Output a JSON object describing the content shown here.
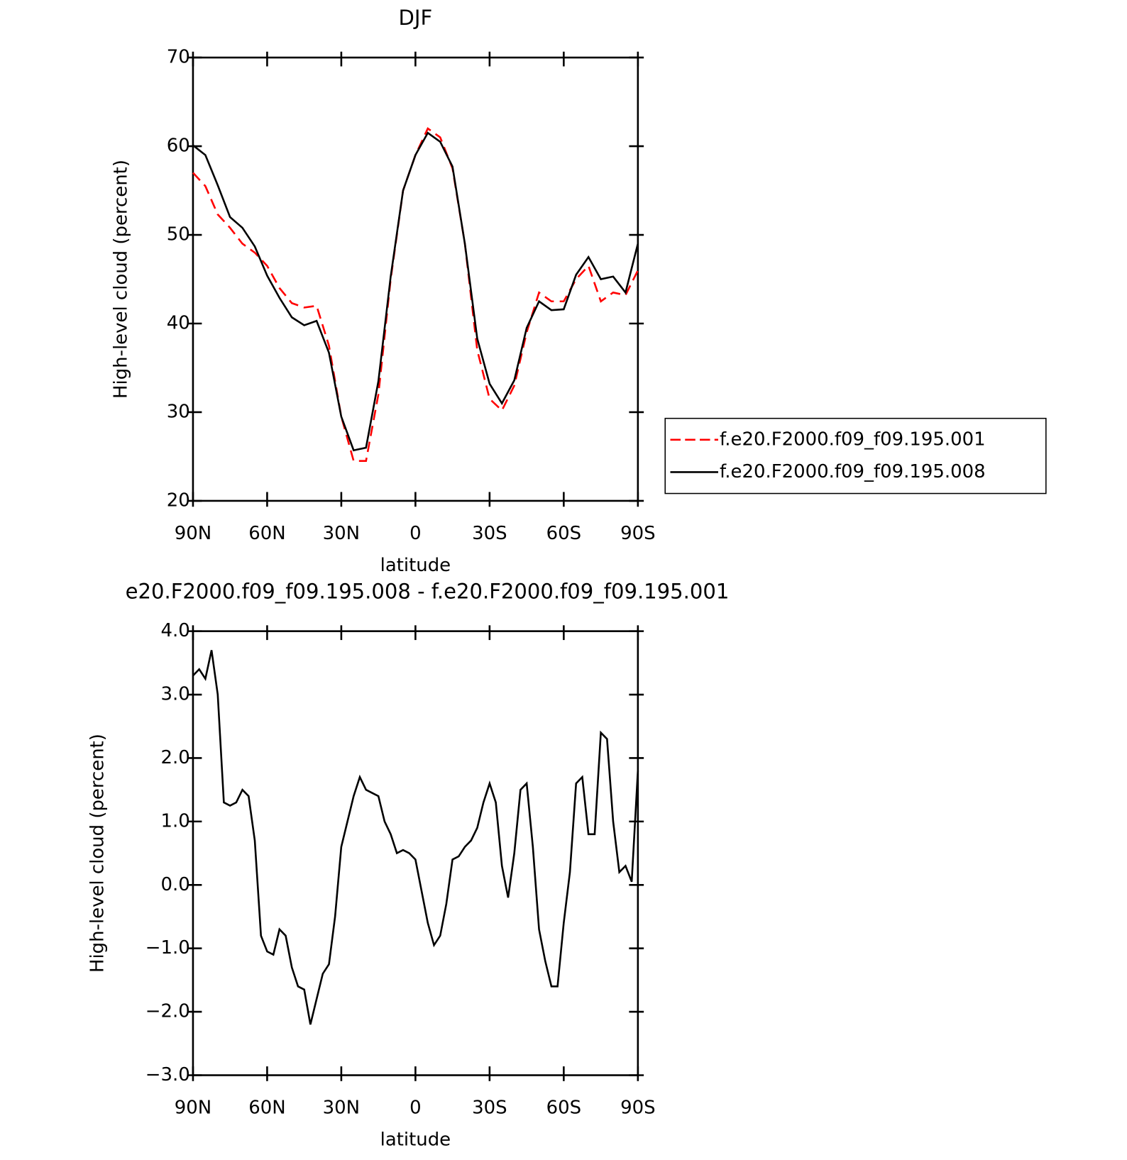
{
  "chart_data": [
    {
      "type": "line",
      "title": "DJF",
      "xlabel": "latitude",
      "ylabel": "High-level cloud (percent)",
      "x": [
        90,
        85,
        80,
        75,
        70,
        65,
        60,
        55,
        50,
        45,
        40,
        35,
        30,
        25,
        20,
        15,
        10,
        5,
        0,
        -5,
        -10,
        -15,
        -20,
        -25,
        -30,
        -35,
        -40,
        -45,
        -50,
        -55,
        -60,
        -65,
        -70,
        -75,
        -80,
        -85,
        -90
      ],
      "series": [
        {
          "name": "f.e20.F2000.f09_f09.195.001",
          "color": "#ff0000",
          "dash": true,
          "values": [
            57,
            55.5,
            52.3,
            50.8,
            49,
            48,
            46.5,
            44,
            42.3,
            41.8,
            42,
            37.5,
            29.5,
            24.5,
            24.5,
            32,
            45,
            55,
            59,
            62,
            61,
            57.5,
            49,
            37,
            31.5,
            30.2,
            33,
            39,
            43.5,
            42.5,
            42.5,
            45,
            46.5,
            42.5,
            43.5,
            43.2,
            46
          ]
        },
        {
          "name": "f.e20.F2000.f09_f09.195.008",
          "color": "#000000",
          "dash": false,
          "values": [
            60.1,
            59,
            55.6,
            52,
            50.8,
            48.7,
            45.4,
            42.9,
            40.7,
            39.8,
            40.3,
            36.7,
            29.5,
            25.7,
            26,
            33.5,
            45.3,
            55,
            59,
            61.5,
            60.5,
            57.7,
            49,
            38.3,
            33.2,
            31,
            33.6,
            39.5,
            42.5,
            41.5,
            41.6,
            45.5,
            47.5,
            45,
            45.3,
            43.5,
            49
          ]
        }
      ],
      "xlim": [
        90,
        -90
      ],
      "xticks": [
        {
          "value": 90,
          "label": "90N"
        },
        {
          "value": 60,
          "label": "60N"
        },
        {
          "value": 30,
          "label": "30N"
        },
        0,
        {
          "value": -30,
          "label": "30S"
        },
        {
          "value": -60,
          "label": "60S"
        },
        {
          "value": -90,
          "label": "90S"
        }
      ],
      "ylim": [
        20,
        70
      ],
      "yticks": [
        20,
        30,
        40,
        50,
        60,
        70
      ],
      "legend": "right"
    },
    {
      "type": "line",
      "title": "e20.F2000.f09_f09.195.008 - f.e20.F2000.f09_f09.195.001",
      "xlabel": "latitude",
      "ylabel": "High-level cloud (percent)",
      "x": [
        90,
        87.5,
        85,
        82.5,
        80,
        77.5,
        75,
        72.5,
        70,
        67.5,
        65,
        62.5,
        60,
        57.5,
        55,
        52.5,
        50,
        47.5,
        45,
        42.5,
        40,
        37.5,
        35,
        32.5,
        30,
        27.5,
        25,
        22.5,
        20,
        17.5,
        15,
        12.5,
        10,
        7.5,
        5,
        2.5,
        0,
        -2.5,
        -5,
        -7.5,
        -10,
        -12.5,
        -15,
        -17.5,
        -20,
        -22.5,
        -25,
        -27.5,
        -30,
        -32.5,
        -35,
        -37.5,
        -40,
        -42.5,
        -45,
        -47.5,
        -50,
        -52.5,
        -55,
        -57.5,
        -60,
        -62.5,
        -65,
        -67.5,
        -70,
        -72.5,
        -75,
        -77.5,
        -80,
        -82.5,
        -85,
        -87.5,
        -90
      ],
      "series": [
        {
          "name": null,
          "color": "#000000",
          "dash": false,
          "values": [
            3.3,
            3.4,
            3.25,
            3.7,
            3.0,
            1.3,
            1.25,
            1.3,
            1.5,
            1.4,
            0.7,
            -0.8,
            -1.05,
            -1.1,
            -0.7,
            -0.8,
            -1.3,
            -1.6,
            -1.65,
            -2.2,
            -1.8,
            -1.4,
            -1.25,
            -0.5,
            0.6,
            1.0,
            1.4,
            1.7,
            1.5,
            1.45,
            1.4,
            1.0,
            0.8,
            0.5,
            0.55,
            0.5,
            0.4,
            -0.1,
            -0.6,
            -0.95,
            -0.8,
            -0.3,
            0.4,
            0.45,
            0.6,
            0.7,
            0.9,
            1.3,
            1.6,
            1.3,
            0.3,
            -0.2,
            0.5,
            1.5,
            1.6,
            0.6,
            -0.7,
            -1.2,
            -1.6,
            -1.6,
            -0.6,
            0.2,
            1.6,
            1.7,
            0.8,
            0.8,
            2.4,
            2.3,
            1.0,
            0.2,
            0.3,
            0.05,
            1.8
          ]
        }
      ],
      "xlim": [
        90,
        -90
      ],
      "xticks": [
        {
          "value": 90,
          "label": "90N"
        },
        {
          "value": 60,
          "label": "60N"
        },
        {
          "value": 30,
          "label": "30N"
        },
        0,
        {
          "value": -30,
          "label": "30S"
        },
        {
          "value": -60,
          "label": "60S"
        },
        {
          "value": -90,
          "label": "90S"
        }
      ],
      "ylim": [
        -3,
        4
      ],
      "yticks": [
        {
          "value": -3,
          "label": "−3.0"
        },
        {
          "value": -2,
          "label": "−2.0"
        },
        {
          "value": -1,
          "label": "−1.0"
        },
        {
          "value": 0,
          "label": "0.0"
        },
        {
          "value": 1,
          "label": "1.0"
        },
        {
          "value": 2,
          "label": "2.0"
        },
        {
          "value": 3,
          "label": "3.0"
        },
        {
          "value": 4,
          "label": "4.0"
        }
      ]
    }
  ]
}
